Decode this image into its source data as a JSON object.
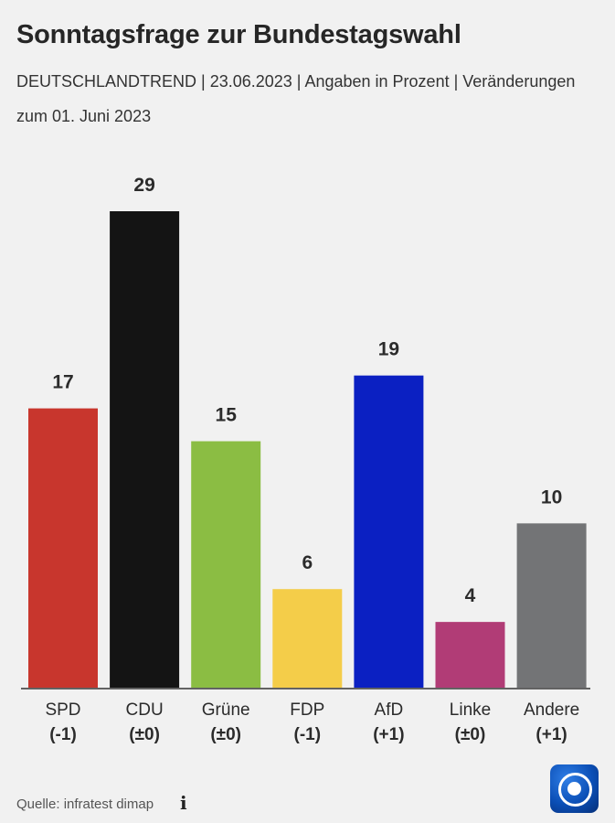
{
  "header": {
    "title": "Sonntagsfrage zur Bundestagswahl",
    "subtitle": "DEUTSCHLANDTREND | 23.06.2023 | Angaben in Prozent | Veränderungen zum 01. Juni 2023"
  },
  "chart_data": {
    "type": "bar",
    "title": "Sonntagsfrage zur Bundestagswahl",
    "xlabel": "",
    "ylabel": "",
    "ylim": [
      0,
      29
    ],
    "categories": [
      "SPD",
      "CDU",
      "Grüne",
      "FDP",
      "AfD",
      "Linke",
      "Andere"
    ],
    "changes": [
      "(-1)",
      "(±0)",
      "(±0)",
      "(-1)",
      "(+1)",
      "(±0)",
      "(+1)"
    ],
    "values": [
      17,
      29,
      15,
      6,
      19,
      4,
      10
    ],
    "colors": [
      "#c8362d",
      "#141414",
      "#8bbd43",
      "#f4cd49",
      "#0b20c2",
      "#b13c76",
      "#737476"
    ],
    "grid": false
  },
  "footer": {
    "source": "Quelle: infratest dimap",
    "info_icon": "i",
    "logo_icon": "tagesschau-logo-icon"
  }
}
